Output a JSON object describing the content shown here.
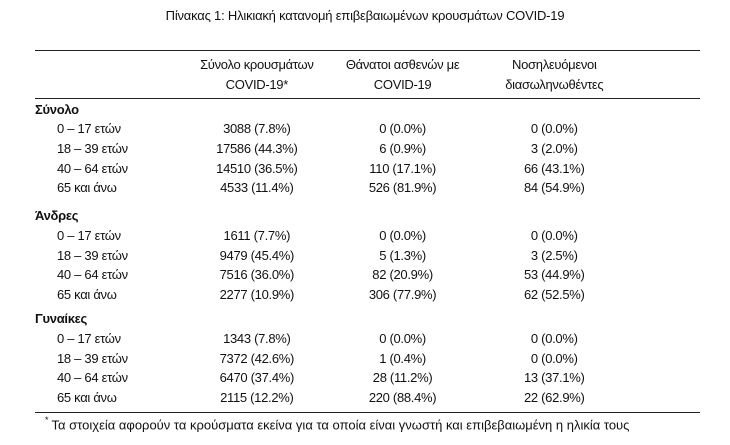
{
  "title": "Πίνακας 1: Ηλικιακή κατανομή επιβεβαιωμένων κρουσμάτων COVID-19",
  "headers": [
    [
      "Σύνολο κρουσμάτων",
      "COVID-19*"
    ],
    [
      "Θάνατοι ασθενών με",
      "COVID-19"
    ],
    [
      "Νοσηλευόμενοι",
      "διασωληνωθέντες"
    ]
  ],
  "groups": [
    {
      "label": "Σύνολο",
      "rows": [
        [
          "0 – 17 ετών",
          "3088 (7.8%)",
          "0 (0.0%)",
          "0 (0.0%)"
        ],
        [
          "18 – 39 ετών",
          "17586 (44.3%)",
          "6 (0.9%)",
          "3 (2.0%)"
        ],
        [
          "40 – 64 ετών",
          "14510 (36.5%)",
          "110 (17.1%)",
          "66 (43.1%)"
        ],
        [
          "65 και άνω",
          "4533 (11.4%)",
          "526 (81.9%)",
          "84 (54.9%)"
        ]
      ]
    },
    {
      "label": "Άνδρες",
      "rows": [
        [
          "0 – 17 ετών",
          "1611 (7.7%)",
          "0 (0.0%)",
          "0 (0.0%)"
        ],
        [
          "18 – 39 ετών",
          "9479 (45.4%)",
          "5 (1.3%)",
          "3 (2.5%)"
        ],
        [
          "40 – 64 ετών",
          "7516 (36.0%)",
          "82 (20.9%)",
          "53 (44.9%)"
        ],
        [
          "65 και άνω",
          "2277 (10.9%)",
          "306 (77.9%)",
          "62 (52.5%)"
        ]
      ]
    },
    {
      "label": "Γυναίκες",
      "rows": [
        [
          "0 – 17 ετών",
          "1343 (7.8%)",
          "0 (0.0%)",
          "0 (0.0%)"
        ],
        [
          "18 – 39 ετών",
          "7372 (42.6%)",
          "1 (0.4%)",
          "0 (0.0%)"
        ],
        [
          "40 – 64 ετών",
          "6470 (37.4%)",
          "28 (11.2%)",
          "13 (37.1%)"
        ],
        [
          "65 και άνω",
          "2115 (12.2%)",
          "220 (88.4%)",
          "22 (62.9%)"
        ]
      ]
    }
  ],
  "footnote": {
    "marker": "*",
    "text": "Τα στοιχεία αφορούν τα κρούσματα εκείνα για τα οποία είναι γνωστή και επιβεβαιωμένη η ηλικία τους"
  }
}
